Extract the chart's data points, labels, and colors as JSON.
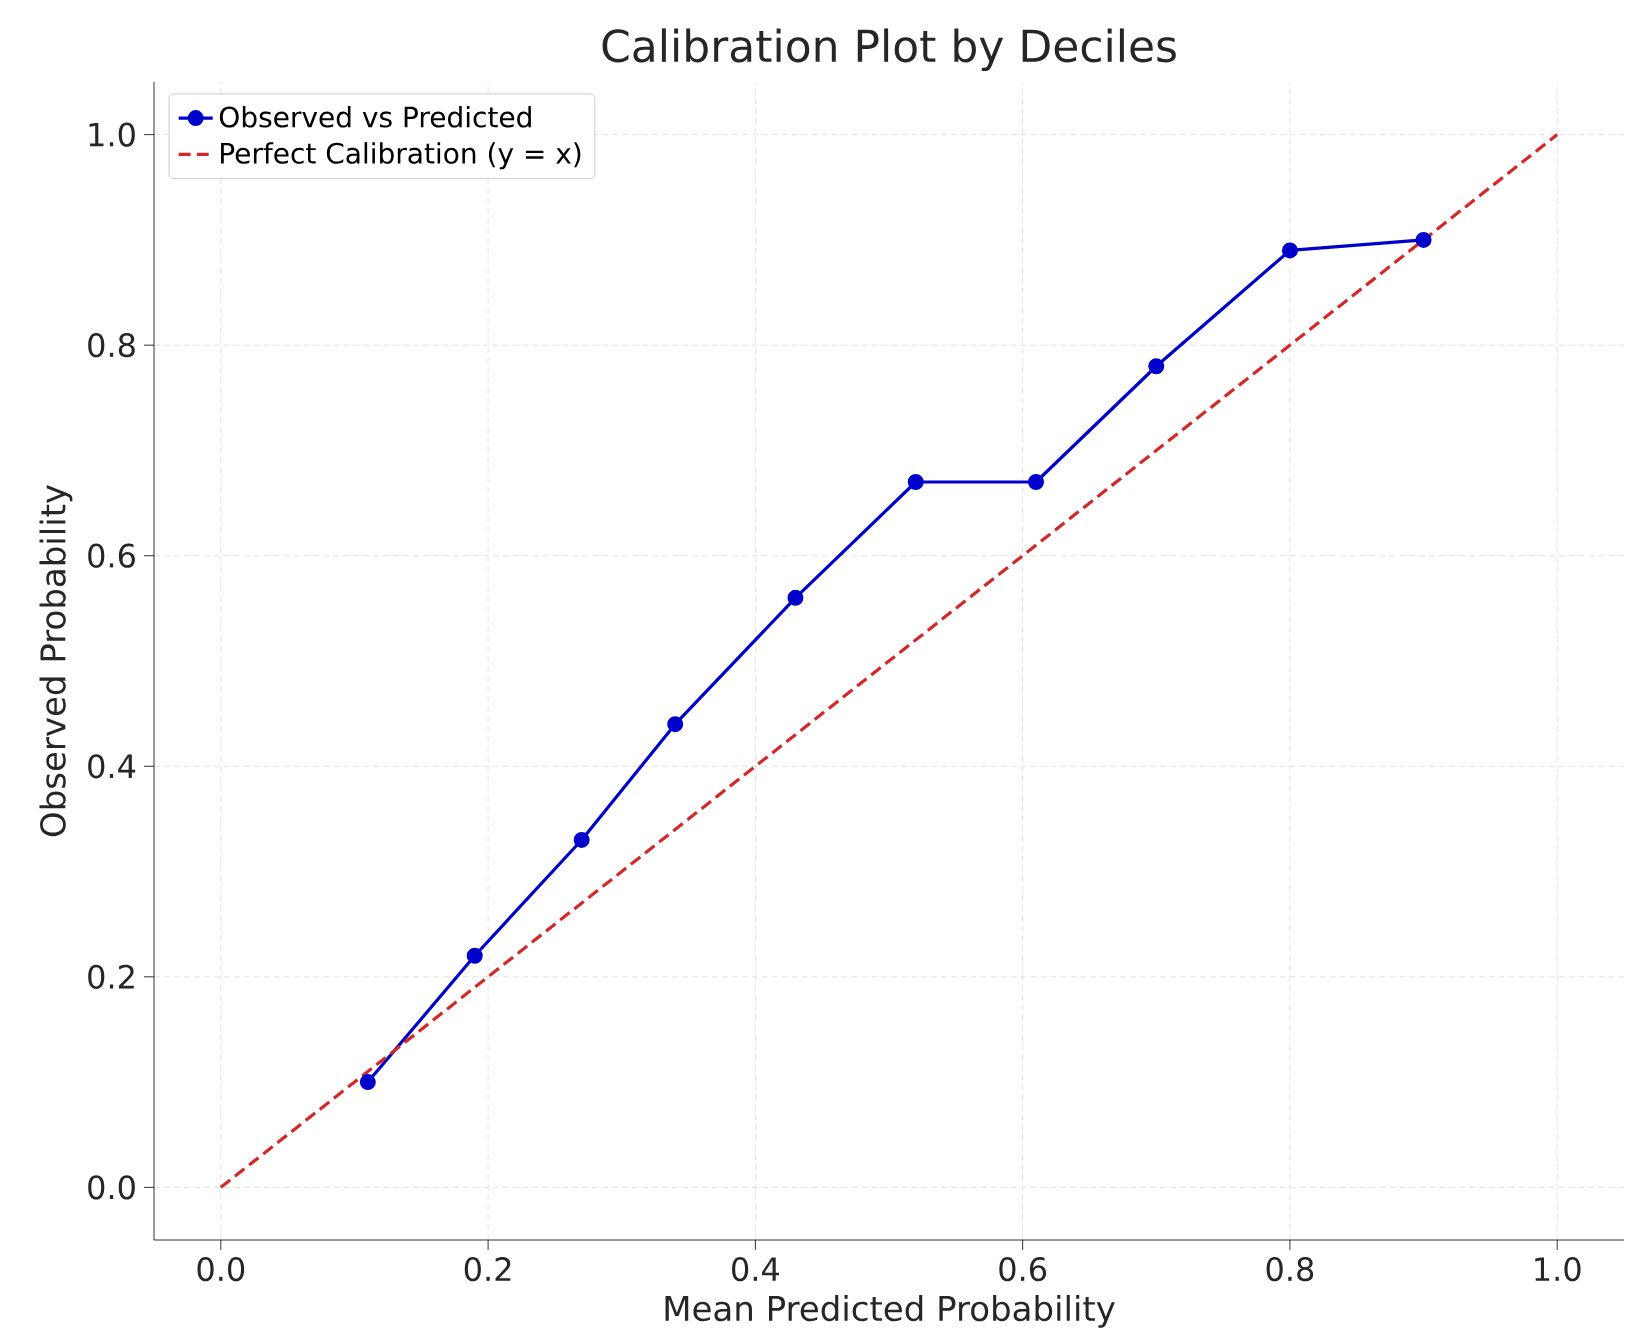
{
  "chart_data": {
    "type": "line",
    "title": "Calibration Plot by Deciles",
    "xlabel": "Mean Predicted Probability",
    "ylabel": "Observed Probability",
    "series": [
      {
        "name": "Observed vs Predicted",
        "color": "#0000cc",
        "marker": "circle",
        "line_style": "solid",
        "x": [
          0.11,
          0.19,
          0.27,
          0.34,
          0.43,
          0.52,
          0.61,
          0.7,
          0.8,
          0.9
        ],
        "values": [
          0.1,
          0.22,
          0.33,
          0.44,
          0.56,
          0.67,
          0.67,
          0.78,
          0.89,
          0.9
        ]
      },
      {
        "name": "Perfect Calibration (y = x)",
        "color": "#d62728",
        "marker": "none",
        "line_style": "dashed",
        "x": [
          0,
          1
        ],
        "values": [
          0,
          1
        ]
      }
    ],
    "xlim": [
      -0.05,
      1.05
    ],
    "ylim": [
      -0.05,
      1.05
    ],
    "xticks": [
      {
        "value": 0,
        "label": "0.0"
      },
      {
        "value": 0.2,
        "label": "0.2"
      },
      {
        "value": 0.4,
        "label": "0.4"
      },
      {
        "value": 0.6,
        "label": "0.6"
      },
      {
        "value": 0.8,
        "label": "0.8"
      },
      {
        "value": 1,
        "label": "1.0"
      }
    ],
    "yticks": [
      {
        "value": 0,
        "label": "0.0"
      },
      {
        "value": 0.2,
        "label": "0.2"
      },
      {
        "value": 0.4,
        "label": "0.4"
      },
      {
        "value": 0.6,
        "label": "0.6"
      },
      {
        "value": 0.8,
        "label": "0.8"
      },
      {
        "value": 1,
        "label": "1.0"
      }
    ],
    "grid": true,
    "legend": "top left"
  }
}
